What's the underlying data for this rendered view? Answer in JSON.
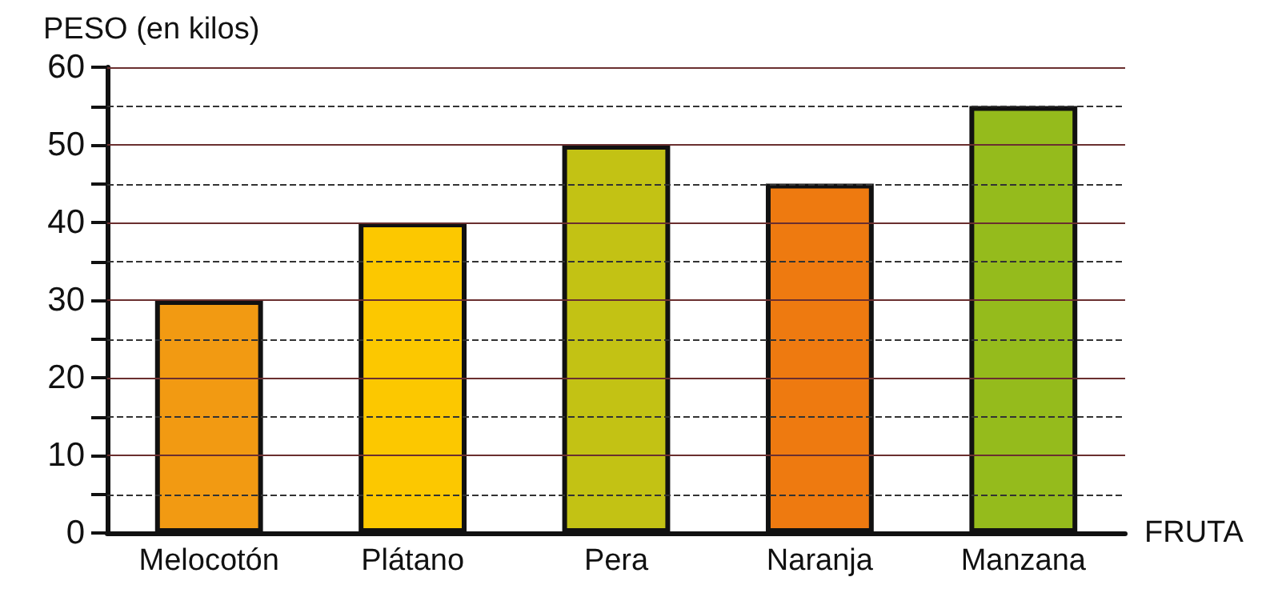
{
  "chart_data": {
    "type": "bar",
    "ylabel": "PESO (en kilos)",
    "xlabel": "FRUTA",
    "categories": [
      "Melocotón",
      "Plátano",
      "Pera",
      "Naranja",
      "Manzana"
    ],
    "values": [
      30,
      40,
      50,
      45,
      55
    ],
    "colors": [
      "#f29a12",
      "#fcc800",
      "#c3c214",
      "#ee7a10",
      "#95bb1c"
    ],
    "ylim": [
      0,
      60
    ],
    "yticks": [
      0,
      {
        "value": 5,
        "label": null
      },
      10,
      {
        "value": 15,
        "label": null
      },
      20,
      {
        "value": 25,
        "label": null
      },
      30,
      {
        "value": 35,
        "label": null
      },
      40,
      {
        "value": 45,
        "label": null
      },
      50,
      {
        "value": 55,
        "label": null
      },
      60
    ],
    "grid": "y"
  }
}
